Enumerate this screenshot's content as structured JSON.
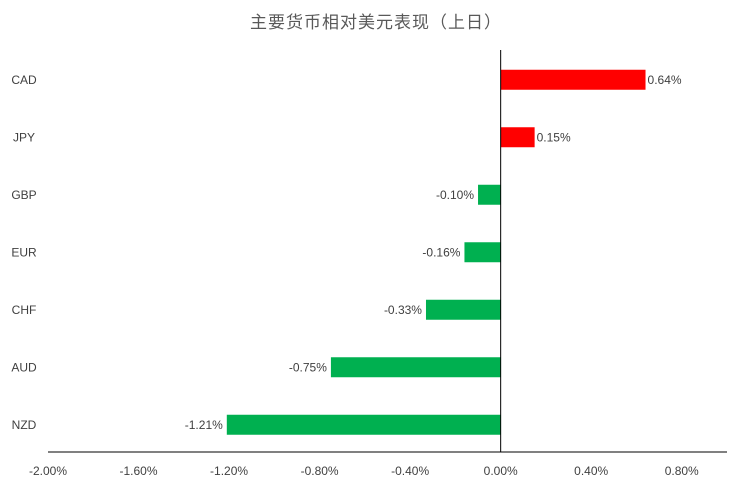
{
  "chart_data": {
    "type": "bar",
    "orientation": "horizontal",
    "title": "主要货币相对美元表现（上日）",
    "categories": [
      "CAD",
      "JPY",
      "GBP",
      "EUR",
      "CHF",
      "AUD",
      "NZD"
    ],
    "values": [
      0.64,
      0.15,
      -0.1,
      -0.16,
      -0.33,
      -0.75,
      -1.21
    ],
    "value_labels": [
      "0.64%",
      "0.15%",
      "-0.10%",
      "-0.16%",
      "-0.33%",
      "-0.75%",
      "-1.21%"
    ],
    "xlim": [
      -2.0,
      1.0
    ],
    "xticks": [
      -2.0,
      -1.6,
      -1.2,
      -0.8,
      -0.4,
      0.0,
      0.4,
      0.8
    ],
    "xtick_labels": [
      "-2.00%",
      "-1.60%",
      "-1.20%",
      "-0.80%",
      "-0.40%",
      "0.00%",
      "0.40%",
      "0.80%"
    ],
    "xlabel": "",
    "ylabel": "",
    "grid": false,
    "legend": "none",
    "colors": {
      "positive": "#ff0000",
      "negative": "#00b050",
      "axis": "#000000"
    }
  }
}
